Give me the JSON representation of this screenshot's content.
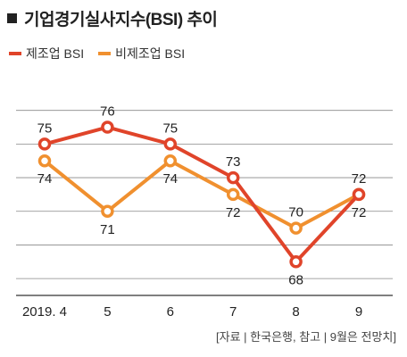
{
  "title": "기업경기실사지수(BSI) 추이",
  "source": "[자료 | 한국은행, 참고 | 9월은 전망치]",
  "colors": {
    "series_1": "#e0442a",
    "series_2": "#f0902f",
    "grid": "#333333",
    "text": "#222222"
  },
  "chart_data": {
    "type": "line",
    "title": "기업경기실사지수(BSI) 추이",
    "categories": [
      "2019. 4",
      "5",
      "6",
      "7",
      "8",
      "9"
    ],
    "ylim": [
      66,
      79
    ],
    "grid": true,
    "legend": "top-left",
    "series": [
      {
        "name": "제조업 BSI",
        "values": [
          75,
          76,
          75,
          73,
          68,
          72
        ],
        "color": "#e0442a"
      },
      {
        "name": "비제조업 BSI",
        "values": [
          74,
          71,
          74,
          72,
          70,
          72
        ],
        "color": "#f0902f"
      }
    ]
  }
}
